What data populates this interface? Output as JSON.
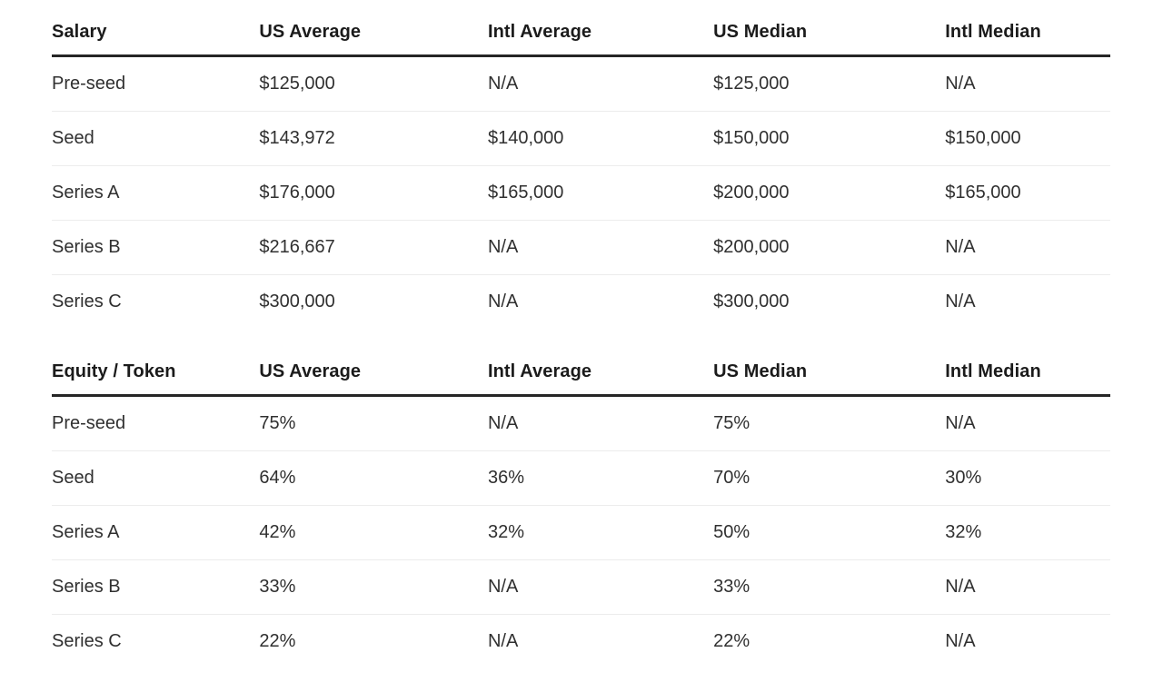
{
  "colors": {
    "background": "#ffffff",
    "header_text": "#1b1b1b",
    "body_text": "#303030",
    "header_rule": "#262626",
    "row_divider": "#ececec"
  },
  "chart_data": [
    {
      "type": "table",
      "title": "Salary",
      "columns": [
        "Salary",
        "US Average",
        "Intl Average",
        "US Median",
        "Intl Median"
      ],
      "rows": [
        {
          "label": "Pre-seed",
          "values": [
            "$125,000",
            "N/A",
            "$125,000",
            "N/A"
          ]
        },
        {
          "label": "Seed",
          "values": [
            "$143,972",
            "$140,000",
            "$150,000",
            "$150,000"
          ]
        },
        {
          "label": "Series A",
          "values": [
            "$176,000",
            "$165,000",
            "$200,000",
            "$165,000"
          ]
        },
        {
          "label": "Series B",
          "values": [
            "$216,667",
            "N/A",
            "$200,000",
            "N/A"
          ]
        },
        {
          "label": "Series C",
          "values": [
            "$300,000",
            "N/A",
            "$300,000",
            "N/A"
          ]
        }
      ]
    },
    {
      "type": "table",
      "title": "Equity / Token",
      "columns": [
        "Equity / Token",
        "US Average",
        "Intl Average",
        "US Median",
        "Intl Median"
      ],
      "rows": [
        {
          "label": "Pre-seed",
          "values": [
            "75%",
            "N/A",
            "75%",
            "N/A"
          ]
        },
        {
          "label": "Seed",
          "values": [
            "64%",
            "36%",
            "70%",
            "30%"
          ]
        },
        {
          "label": "Series A",
          "values": [
            "42%",
            "32%",
            "50%",
            "32%"
          ]
        },
        {
          "label": "Series B",
          "values": [
            "33%",
            "N/A",
            "33%",
            "N/A"
          ]
        },
        {
          "label": "Series C",
          "values": [
            "22%",
            "N/A",
            "22%",
            "N/A"
          ]
        }
      ]
    }
  ]
}
